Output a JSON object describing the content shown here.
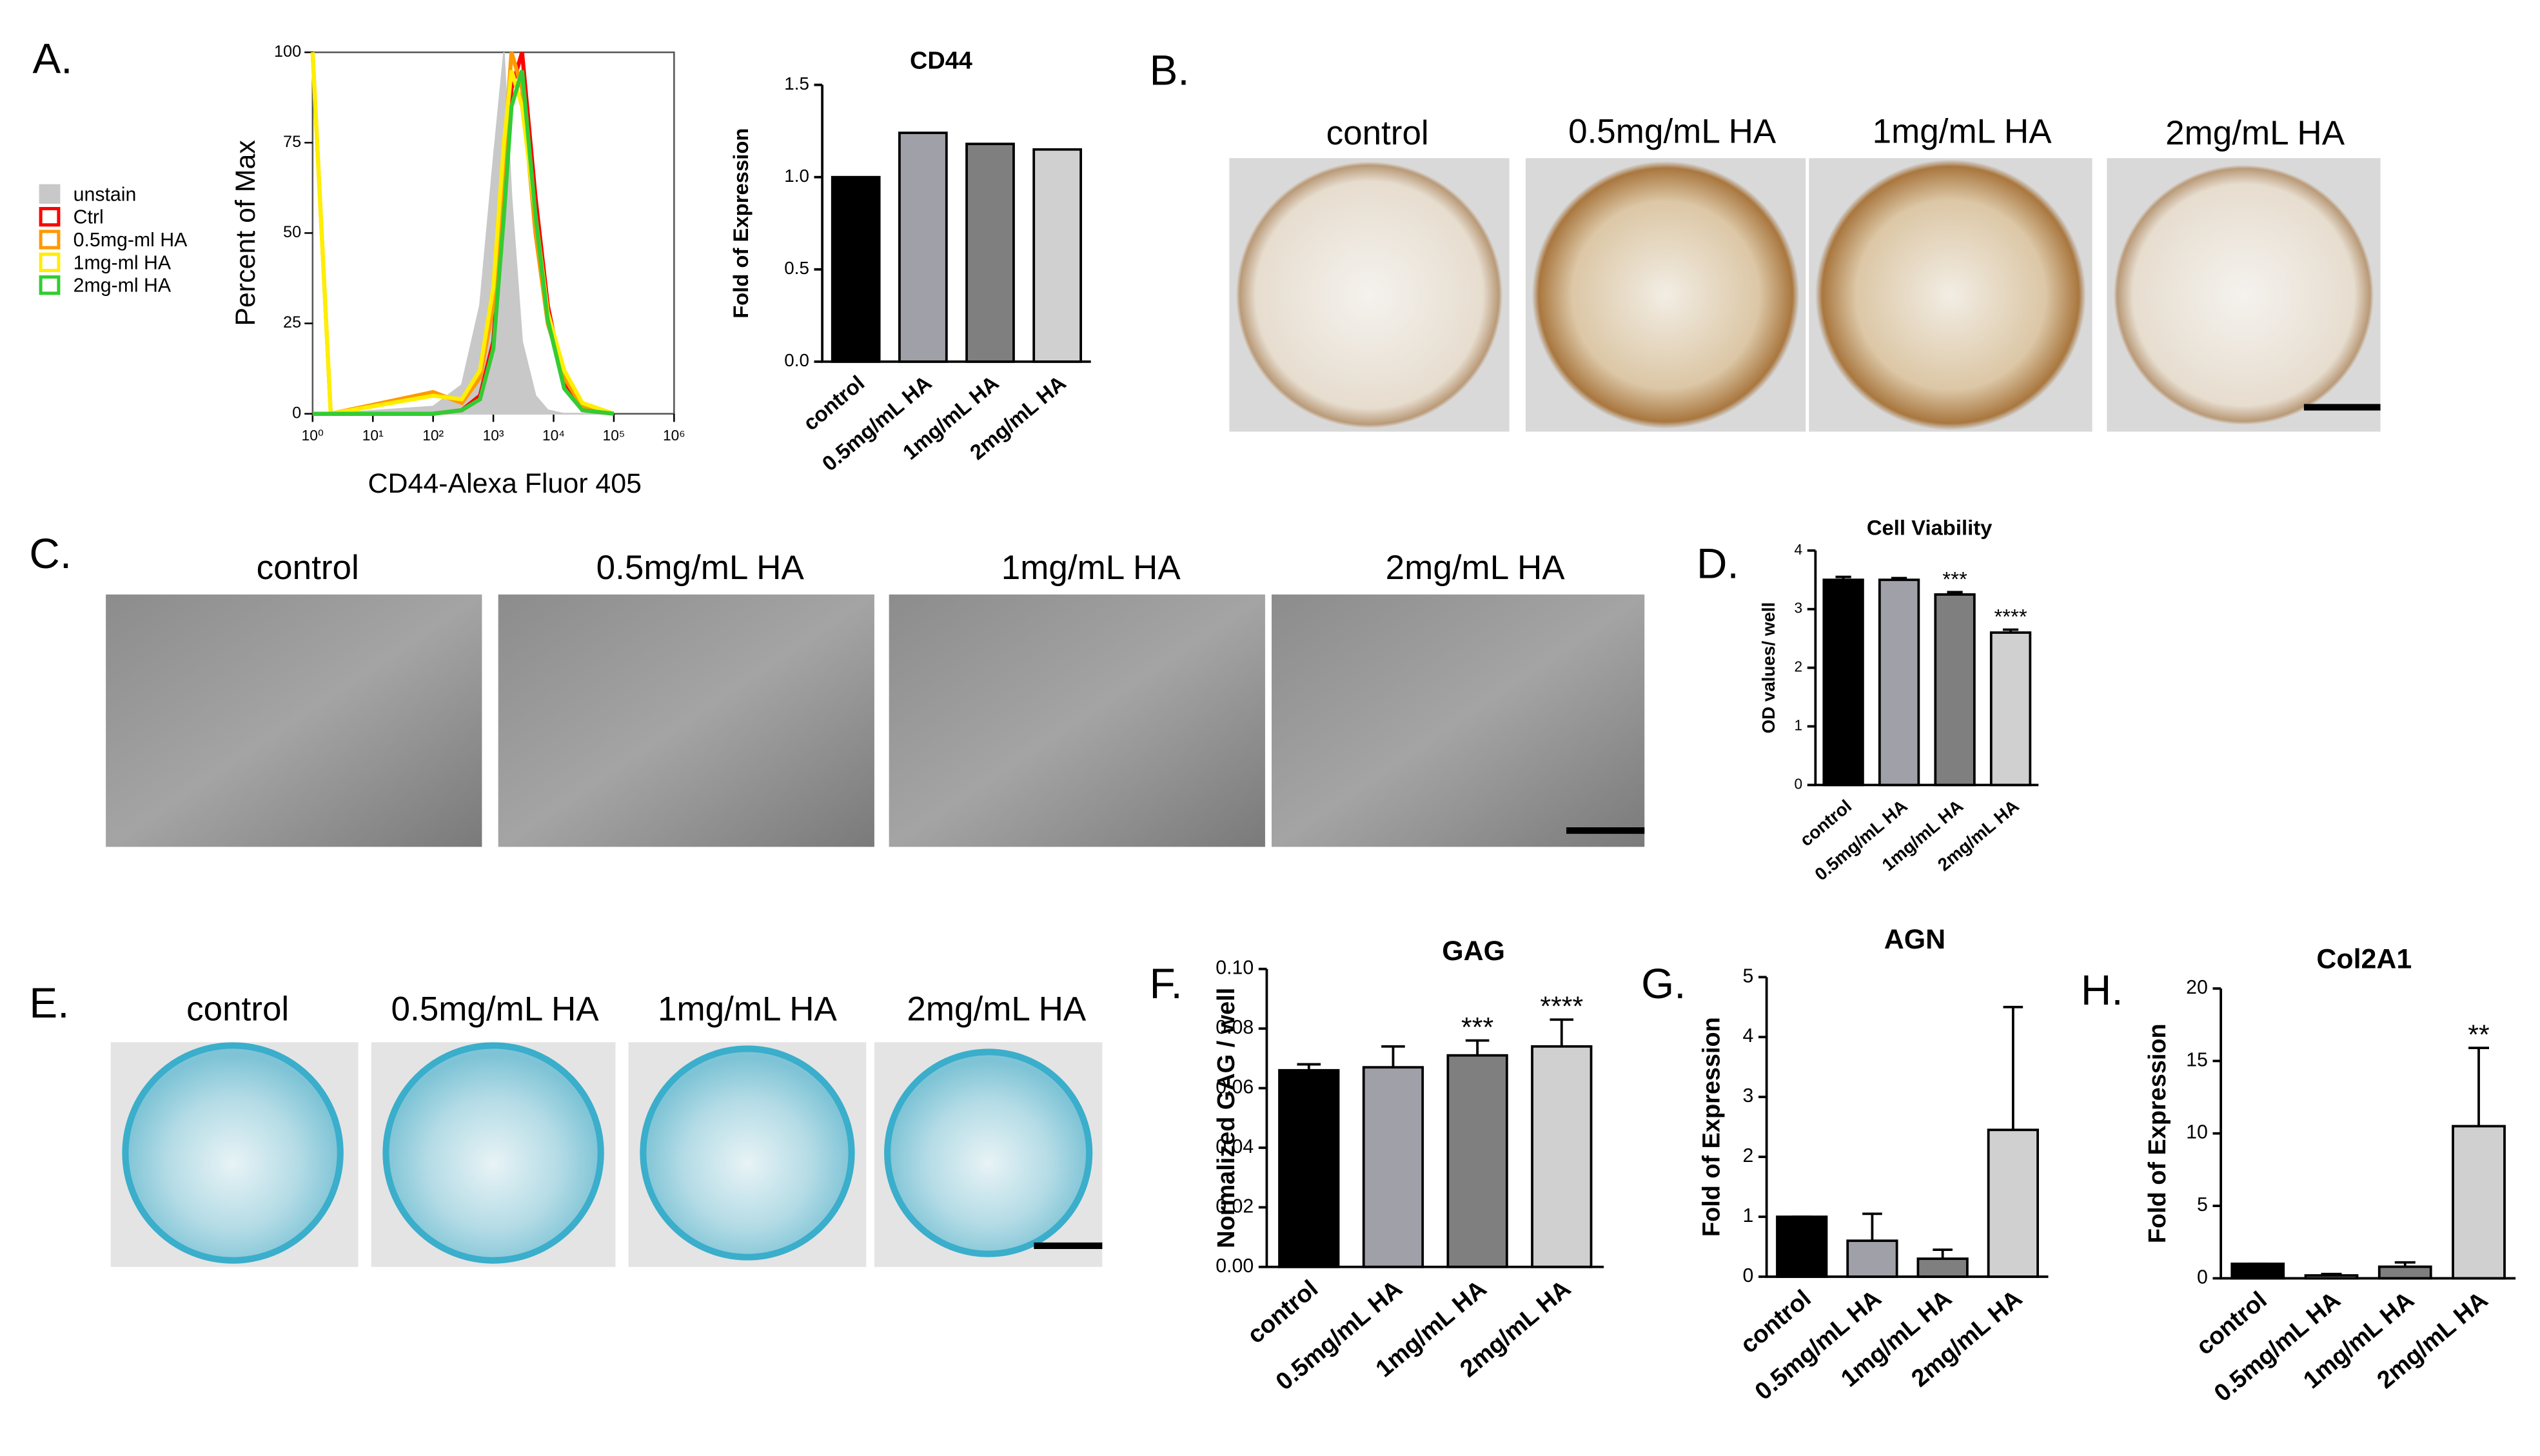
{
  "panel_labels": [
    "A.",
    "B.",
    "C.",
    "D.",
    "E.",
    "F.",
    "G.",
    "H."
  ],
  "photo_captions": {
    "B": [
      "control",
      "0.5mg/mL HA",
      "1mg/mL HA",
      "2mg/mL HA"
    ],
    "C": [
      "control",
      "0.5mg/mL HA",
      "1mg/mL HA",
      "2mg/mL HA"
    ],
    "E": [
      "control",
      "0.5mg/mL HA",
      "1mg/mL HA",
      "2mg/mL HA"
    ]
  },
  "chart_data": [
    {
      "type": "line",
      "y_label": "Percent of Max",
      "x_label": "CD44-Alexa Fluor 405",
      "log_x": true,
      "legend": "left",
      "x": [
        1,
        2,
        100,
        300,
        600,
        1000,
        1500,
        2000,
        3000,
        5000,
        8000,
        15000,
        30000,
        100000
      ],
      "xlim": [
        1,
        1000000
      ],
      "xticks": [
        {
          "value": 1,
          "label": "10⁰"
        },
        {
          "value": 10,
          "label": "10¹"
        },
        {
          "value": 100,
          "label": "10²"
        },
        {
          "value": 1000,
          "label": "10³"
        },
        {
          "value": 10000,
          "label": "10⁴"
        },
        {
          "value": 100000,
          "label": "10⁵"
        },
        {
          "value": 1000000,
          "label": "10⁶"
        }
      ],
      "ylim": [
        0,
        100
      ],
      "yticks": [
        0,
        25,
        50,
        75,
        100
      ],
      "series": [
        {
          "name": "unstain",
          "color": "#c8c8c8",
          "values": [
            0,
            0,
            2,
            8,
            30,
            70,
            100,
            60,
            20,
            5,
            1,
            0,
            0,
            0
          ]
        },
        {
          "name": "Ctrl",
          "color": "#ff0000",
          "values": [
            0,
            0,
            0,
            1,
            5,
            20,
            60,
            90,
            100,
            60,
            30,
            8,
            1,
            0
          ]
        },
        {
          "name": "0.5mg-ml HA",
          "color": "#ff9900",
          "values": [
            100,
            0,
            6,
            3,
            10,
            30,
            70,
            100,
            90,
            50,
            25,
            10,
            2,
            0
          ]
        },
        {
          "name": "1mg-ml HA",
          "color": "#ffee00",
          "values": [
            100,
            0,
            5,
            4,
            12,
            35,
            75,
            95,
            85,
            55,
            28,
            12,
            3,
            0
          ]
        },
        {
          "name": "2mg-ml HA",
          "color": "#33cc33",
          "values": [
            0,
            0,
            0,
            1,
            4,
            18,
            55,
            85,
            95,
            55,
            26,
            7,
            1,
            0
          ]
        }
      ]
    },
    {
      "type": "bar",
      "title": "CD44",
      "y_label": "Fold of Expression",
      "categories": [
        "control",
        "0.5mg/mL HA",
        "1mg/mL HA",
        "2mg/mL HA"
      ],
      "values": [
        1.0,
        1.24,
        1.18,
        1.15
      ],
      "colors": [
        "#000000",
        "#a0a0a8",
        "#7f7f7f",
        "#d0d0d0"
      ],
      "ylim": [
        0,
        1.5
      ],
      "yticks": [
        {
          "value": 0,
          "label": "0.0"
        },
        {
          "value": 0.5,
          "label": "0.5"
        },
        {
          "value": 1,
          "label": "1.0"
        },
        {
          "value": 1.5,
          "label": "1.5"
        }
      ]
    },
    {
      "type": "bar",
      "title": "Cell Viability",
      "y_label": "OD values/ well",
      "categories": [
        "control",
        "0.5mg/mL HA",
        "1mg/mL HA",
        "2mg/mL HA"
      ],
      "values": [
        3.5,
        3.5,
        3.25,
        2.6
      ],
      "errors": [
        0.05,
        0.03,
        0.04,
        0.05
      ],
      "colors": [
        "#000000",
        "#a0a0a8",
        "#7f7f7f",
        "#d0d0d0"
      ],
      "ylim": [
        0,
        4
      ],
      "yticks": [
        0,
        1,
        2,
        3,
        4
      ],
      "annotations": [
        {
          "category": "1mg/mL HA",
          "text": "***"
        },
        {
          "category": "2mg/mL HA",
          "text": "****"
        }
      ]
    },
    {
      "type": "bar",
      "title": "GAG",
      "y_label": "Normalized GAG / well",
      "categories": [
        "control",
        "0.5mg/mL HA",
        "1mg/mL HA",
        "2mg/mL HA"
      ],
      "values": [
        0.066,
        0.067,
        0.071,
        0.074
      ],
      "errors": [
        0.002,
        0.007,
        0.005,
        0.009
      ],
      "colors": [
        "#000000",
        "#a0a0a8",
        "#7f7f7f",
        "#d0d0d0"
      ],
      "ylim": [
        0,
        0.1
      ],
      "yticks": [
        {
          "value": 0,
          "label": "0.00"
        },
        {
          "value": 0.02,
          "label": "0.02"
        },
        {
          "value": 0.04,
          "label": "0.04"
        },
        {
          "value": 0.06,
          "label": "0.06"
        },
        {
          "value": 0.08,
          "label": "0.08"
        },
        {
          "value": 0.1,
          "label": "0.10"
        }
      ],
      "annotations": [
        {
          "category": "1mg/mL HA",
          "text": "***"
        },
        {
          "category": "2mg/mL HA",
          "text": "****"
        }
      ]
    },
    {
      "type": "bar",
      "title": "AGN",
      "y_label": "Fold of Expression",
      "categories": [
        "control",
        "0.5mg/mL HA",
        "1mg/mL HA",
        "2mg/mL HA"
      ],
      "values": [
        1.0,
        0.6,
        0.3,
        2.45
      ],
      "errors": [
        0,
        0.45,
        0.15,
        2.05
      ],
      "colors": [
        "#000000",
        "#a0a0a8",
        "#7f7f7f",
        "#d0d0d0"
      ],
      "ylim": [
        0,
        5
      ],
      "yticks": [
        0,
        1,
        2,
        3,
        4,
        5
      ]
    },
    {
      "type": "bar",
      "title": "Col2A1",
      "y_label": "Fold of Expression",
      "categories": [
        "control",
        "0.5mg/mL HA",
        "1mg/mL HA",
        "2mg/mL HA"
      ],
      "values": [
        1.0,
        0.2,
        0.8,
        10.5
      ],
      "errors": [
        0,
        0.1,
        0.3,
        5.4
      ],
      "colors": [
        "#000000",
        "#a0a0a8",
        "#7f7f7f",
        "#d0d0d0"
      ],
      "ylim": [
        0,
        20
      ],
      "yticks": [
        0,
        5,
        10,
        15,
        20
      ],
      "annotations": [
        {
          "category": "2mg/mL HA",
          "text": "**"
        }
      ]
    }
  ]
}
